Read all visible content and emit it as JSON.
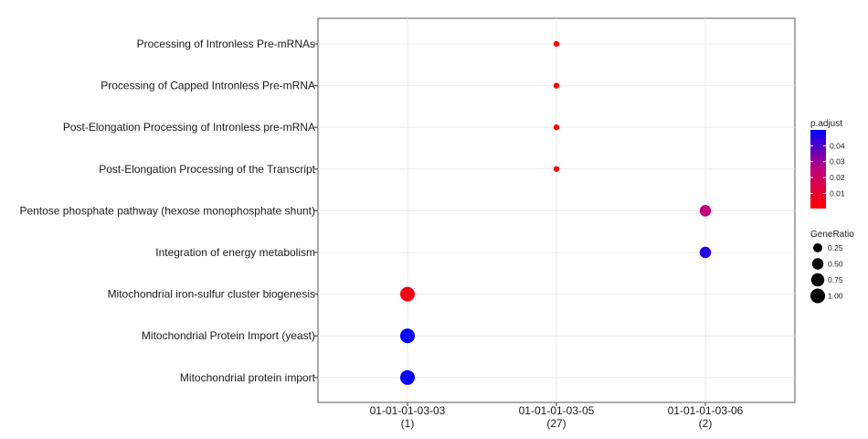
{
  "chart_data": {
    "type": "scatter",
    "title": "",
    "xlabel": "",
    "ylabel": "",
    "grid": true,
    "legend_placement": "right",
    "categories_x": [
      {
        "id": "01-01-01-03-03",
        "count": "(1)"
      },
      {
        "id": "01-01-01-03-05",
        "count": "(27)"
      },
      {
        "id": "01-01-01-03-06",
        "count": "(2)"
      }
    ],
    "categories_y": [
      "Processing of Intronless Pre-mRNAs",
      "Processing of Capped Intronless Pre-mRNA",
      "Post-Elongation Processing of Intronless pre-mRNA",
      "Post-Elongation Processing of the Transcript",
      "Pentose phosphate pathway (hexose monophosphate shunt)",
      "Integration of energy metabolism",
      "Mitochondrial iron-sulfur cluster biogenesis",
      "Mitochondrial Protein Import (yeast)",
      "Mitochondrial protein import"
    ],
    "points": [
      {
        "x": "01-01-01-03-05",
        "y": "Processing of Intronless Pre-mRNAs",
        "gene_ratio": 0.037,
        "p_adjust": 0.0005
      },
      {
        "x": "01-01-01-03-05",
        "y": "Processing of Capped Intronless Pre-mRNA",
        "gene_ratio": 0.037,
        "p_adjust": 0.0005
      },
      {
        "x": "01-01-01-03-05",
        "y": "Post-Elongation Processing of Intronless pre-mRNA",
        "gene_ratio": 0.037,
        "p_adjust": 0.0005
      },
      {
        "x": "01-01-01-03-05",
        "y": "Post-Elongation Processing of the Transcript",
        "gene_ratio": 0.037,
        "p_adjust": 0.0005
      },
      {
        "x": "01-01-01-03-06",
        "y": "Pentose phosphate pathway (hexose monophosphate shunt)",
        "gene_ratio": 0.5,
        "p_adjust": 0.025
      },
      {
        "x": "01-01-01-03-06",
        "y": "Integration of energy metabolism",
        "gene_ratio": 0.5,
        "p_adjust": 0.045
      },
      {
        "x": "01-01-01-03-03",
        "y": "Mitochondrial iron-sulfur cluster biogenesis",
        "gene_ratio": 1.0,
        "p_adjust": 0.005
      },
      {
        "x": "01-01-01-03-03",
        "y": "Mitochondrial Protein Import (yeast)",
        "gene_ratio": 1.0,
        "p_adjust": 0.05
      },
      {
        "x": "01-01-01-03-03",
        "y": "Mitochondrial protein import",
        "gene_ratio": 1.0,
        "p_adjust": 0.05
      }
    ],
    "color_legend": {
      "title": "p.adjust",
      "min": 0.0005,
      "max": 0.05,
      "low_color": "#ff0000",
      "high_color": "#0000ff",
      "ticks": [
        {
          "value": 0.01,
          "label": "0.01"
        },
        {
          "value": 0.02,
          "label": "0.02"
        },
        {
          "value": 0.03,
          "label": "0.03"
        },
        {
          "value": 0.04,
          "label": "0.04"
        }
      ]
    },
    "size_legend": {
      "title": "GeneRatio",
      "entries": [
        {
          "value": 0.25,
          "label": "0.25"
        },
        {
          "value": 0.5,
          "label": "0.50"
        },
        {
          "value": 0.75,
          "label": "0.75"
        },
        {
          "value": 1.0,
          "label": "1.00"
        }
      ]
    }
  }
}
